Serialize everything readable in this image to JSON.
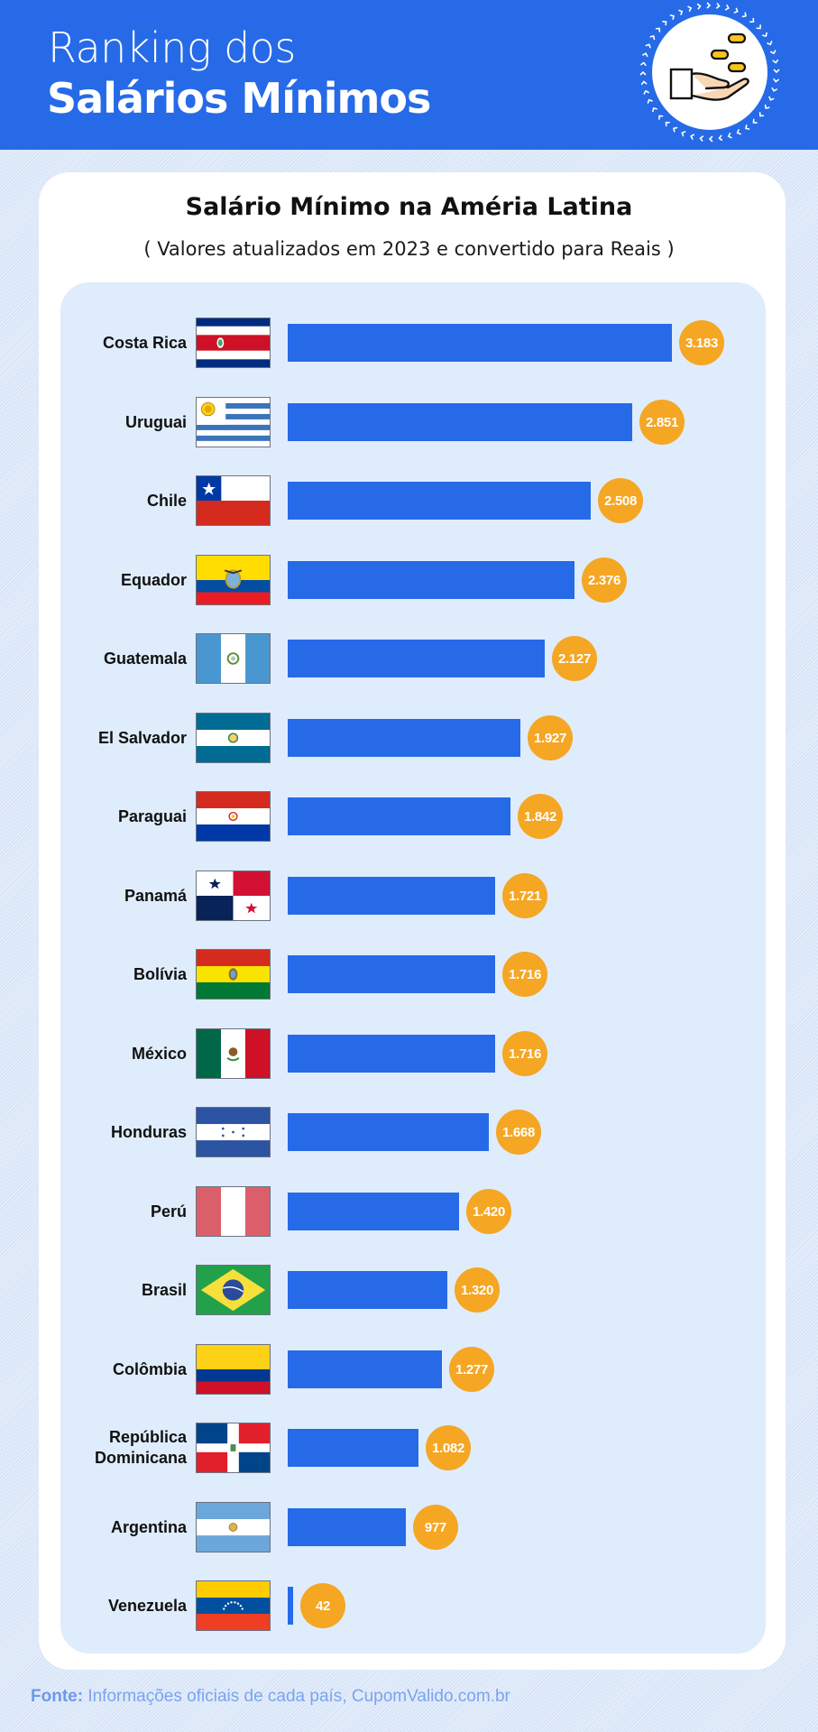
{
  "header": {
    "title_line1": "Ranking dos",
    "title_line2": "Salários Mínimos",
    "icon": "hand-with-coins-icon",
    "background_color": "#266AE8"
  },
  "card": {
    "title": "Salário Mínimo na Améria Latina",
    "subtitle": "( Valores atualizados em 2023 e convertido para Reais )"
  },
  "footer": {
    "label": "Fonte:",
    "text": " Informações oficiais de cada país, CupomValido.com.br"
  },
  "colors": {
    "bar": "#266AE8",
    "badge": "#F5A623",
    "panel": "#DFECFC"
  },
  "rows": [
    {
      "country": "Costa Rica",
      "value_label": "3.183",
      "value": 3183,
      "flag": "costa-rica-flag-icon"
    },
    {
      "country": "Uruguai",
      "value_label": "2.851",
      "value": 2851,
      "flag": "uruguay-flag-icon"
    },
    {
      "country": "Chile",
      "value_label": "2.508",
      "value": 2508,
      "flag": "chile-flag-icon"
    },
    {
      "country": "Equador",
      "value_label": "2.376",
      "value": 2376,
      "flag": "ecuador-flag-icon"
    },
    {
      "country": "Guatemala",
      "value_label": "2.127",
      "value": 2127,
      "flag": "guatemala-flag-icon"
    },
    {
      "country": "El Salvador",
      "value_label": "1.927",
      "value": 1927,
      "flag": "el-salvador-flag-icon"
    },
    {
      "country": "Paraguai",
      "value_label": "1.842",
      "value": 1842,
      "flag": "paraguay-flag-icon"
    },
    {
      "country": "Panamá",
      "value_label": "1.721",
      "value": 1721,
      "flag": "panama-flag-icon"
    },
    {
      "country": "Bolívia",
      "value_label": "1.716",
      "value": 1716,
      "flag": "bolivia-flag-icon"
    },
    {
      "country": "México",
      "value_label": "1.716",
      "value": 1716,
      "flag": "mexico-flag-icon"
    },
    {
      "country": "Honduras",
      "value_label": "1.668",
      "value": 1668,
      "flag": "honduras-flag-icon"
    },
    {
      "country": "Perú",
      "value_label": "1.420",
      "value": 1420,
      "flag": "peru-flag-icon"
    },
    {
      "country": "Brasil",
      "value_label": "1.320",
      "value": 1320,
      "flag": "brazil-flag-icon"
    },
    {
      "country": "Colômbia",
      "value_label": "1.277",
      "value": 1277,
      "flag": "colombia-flag-icon"
    },
    {
      "country": "República Dominicana",
      "value_label": "1.082",
      "value": 1082,
      "flag": "dominican-republic-flag-icon"
    },
    {
      "country": "Argentina",
      "value_label": "977",
      "value": 977,
      "flag": "argentina-flag-icon"
    },
    {
      "country": "Venezuela",
      "value_label": "42",
      "value": 42,
      "flag": "venezuela-flag-icon"
    }
  ],
  "chart_data": {
    "type": "bar",
    "orientation": "horizontal",
    "title": "Salário Mínimo na Améria Latina",
    "subtitle": "( Valores atualizados em 2023 e convertido para Reais )",
    "xlabel": "",
    "ylabel": "",
    "categories": [
      "Costa Rica",
      "Uruguai",
      "Chile",
      "Equador",
      "Guatemala",
      "El Salvador",
      "Paraguai",
      "Panamá",
      "Bolívia",
      "México",
      "Honduras",
      "Perú",
      "Brasil",
      "Colômbia",
      "República Dominicana",
      "Argentina",
      "Venezuela"
    ],
    "values": [
      3183,
      2851,
      2508,
      2376,
      2127,
      1927,
      1842,
      1721,
      1716,
      1716,
      1668,
      1420,
      1320,
      1277,
      1082,
      977,
      42
    ],
    "value_labels": [
      "3.183",
      "2.851",
      "2.508",
      "2.376",
      "2.127",
      "1.927",
      "1.842",
      "1.721",
      "1.716",
      "1.716",
      "1.668",
      "1.420",
      "1.320",
      "1.277",
      "1.082",
      "977",
      "42"
    ],
    "unit": "BRL",
    "grid": false,
    "legend": false,
    "source": "Fonte: Informações oficiais de cada país, CupomValido.com.br"
  }
}
